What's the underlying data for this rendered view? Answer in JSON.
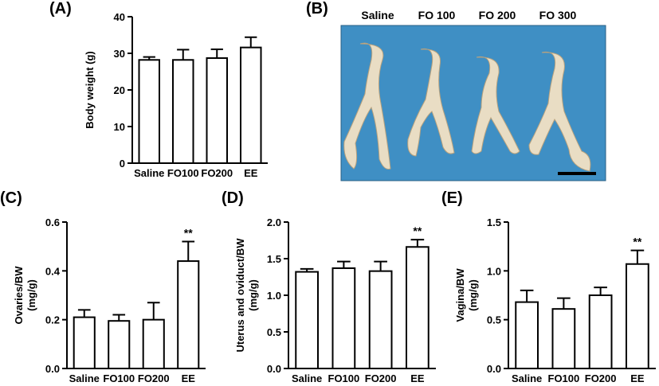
{
  "panel_labels": {
    "A": "(A)",
    "B": "(B)",
    "C": "(C)",
    "D": "(D)",
    "E": "(E)"
  },
  "photo": {
    "labels": [
      "Saline",
      "FO 100",
      "FO 200",
      "FO 300"
    ],
    "background_color": "#3f8fc4"
  },
  "colors": {
    "axis": "#000000",
    "bar_fill": "#ffffff"
  },
  "chart_data": [
    {
      "id": "A",
      "type": "bar",
      "title": "",
      "categories": [
        "Saline",
        "FO100",
        "FO200",
        "EE"
      ],
      "values": [
        28.2,
        28.2,
        28.7,
        31.6
      ],
      "errors": [
        0.8,
        2.8,
        2.4,
        2.8
      ],
      "annotations": [
        "",
        "",
        "",
        ""
      ],
      "xlabel": "",
      "ylabel": "Body weight (g)",
      "ylim": [
        0,
        40
      ],
      "yticks": [
        "0",
        "10",
        "20",
        "30",
        "40"
      ]
    },
    {
      "id": "C",
      "type": "bar",
      "title": "",
      "categories": [
        "Saline",
        "FO100",
        "FO200",
        "EE"
      ],
      "values": [
        0.21,
        0.195,
        0.2,
        0.44
      ],
      "errors": [
        0.03,
        0.025,
        0.07,
        0.08
      ],
      "annotations": [
        "",
        "",
        "",
        "**"
      ],
      "xlabel": "",
      "ylabel": [
        "Ovaries/BW",
        "(mg/g)"
      ],
      "ylim": [
        0,
        0.6
      ],
      "yticks": [
        "0.0",
        "0.2",
        "0.4",
        "0.6"
      ]
    },
    {
      "id": "D",
      "type": "bar",
      "title": "",
      "categories": [
        "Saline",
        "FO100",
        "FO200",
        "EE"
      ],
      "values": [
        1.32,
        1.37,
        1.33,
        1.66
      ],
      "errors": [
        0.04,
        0.09,
        0.13,
        0.1
      ],
      "annotations": [
        "",
        "",
        "",
        "**"
      ],
      "xlabel": "",
      "ylabel": [
        "Uterus and oviduct/BW",
        "(mg/g)"
      ],
      "ylim": [
        0,
        2.0
      ],
      "yticks": [
        "0.0",
        "0.5",
        "1.0",
        "1.5",
        "2.0"
      ]
    },
    {
      "id": "E",
      "type": "bar",
      "title": "",
      "categories": [
        "Saline",
        "FO100",
        "FO200",
        "EE"
      ],
      "values": [
        0.68,
        0.61,
        0.75,
        1.07
      ],
      "errors": [
        0.12,
        0.11,
        0.08,
        0.14
      ],
      "annotations": [
        "",
        "",
        "",
        "**"
      ],
      "xlabel": "",
      "ylabel": [
        "Vagina/BW",
        "(mg/g)"
      ],
      "ylim": [
        0,
        1.5
      ],
      "yticks": [
        "0.0",
        "0.5",
        "1.0",
        "1.5"
      ]
    }
  ]
}
